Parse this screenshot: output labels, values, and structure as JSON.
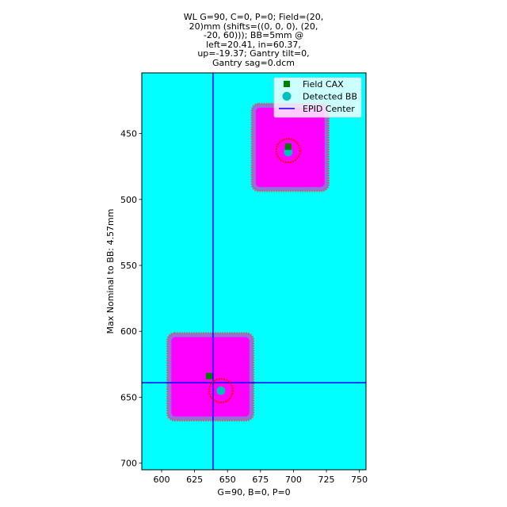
{
  "chart_data": {
    "type": "scatter",
    "title": "WL G=90, C=0, P=0; Field=(20, 20)mm (shifts=((0, 0, 0), (20, -20, 60))); BB=5mm @ left=20.41, in=60.37, up=-19.37; Gantry tilt=0, Gantry sag=0.dcm",
    "title_lines": [
      "WL G=90, C=0, P=0; Field=(20,",
      "20)mm (shifts=((0, 0, 0), (20,",
      "-20, 60))); BB=5mm @",
      "left=20.41, in=60.37,",
      "up=-19.37; Gantry tilt=0,",
      "Gantry sag=0.dcm"
    ],
    "xlabel": "G=90, B=0, P=0",
    "ylabel": "Max Nominal to BB: 4.57mm",
    "xlim": [
      585,
      755
    ],
    "ylim": [
      705,
      404
    ],
    "y_inverted": true,
    "x_ticks": [
      600,
      625,
      650,
      675,
      700,
      725,
      750
    ],
    "y_ticks": [
      450,
      500,
      550,
      600,
      650,
      700
    ],
    "background_color": "#00ffff",
    "field_color": "#ff00ff",
    "field_edge_color": "#9370db",
    "contour_color": "#cd5c5c",
    "fields": [
      {
        "name": "upper-field",
        "x0": 669,
        "x1": 726,
        "y0": 428,
        "y1": 493
      },
      {
        "name": "lower-field",
        "x0": 605,
        "x1": 669,
        "y0": 602,
        "y1": 667
      }
    ],
    "series": [
      {
        "name": "Field CAX",
        "marker": "square",
        "color": "#008000",
        "points": [
          [
            696,
            460
          ],
          [
            636,
            634
          ]
        ]
      },
      {
        "name": "Detected BB",
        "marker": "circle",
        "color": "#00bfbf",
        "points": [
          [
            696,
            464
          ],
          [
            645,
            645
          ]
        ]
      },
      {
        "name": "EPID Center",
        "marker": "line",
        "color": "#0000ff",
        "vline_x": 639,
        "hline_y": 639
      }
    ],
    "bb_rings": [
      {
        "x": 696,
        "y": 463,
        "radius": 9,
        "color": "#ff0000"
      },
      {
        "x": 645,
        "y": 645,
        "radius": 9,
        "color": "#ff0000"
      }
    ],
    "legend": {
      "placement": "top-right",
      "entries": [
        "Field CAX",
        "Detected BB",
        "EPID Center"
      ]
    }
  }
}
